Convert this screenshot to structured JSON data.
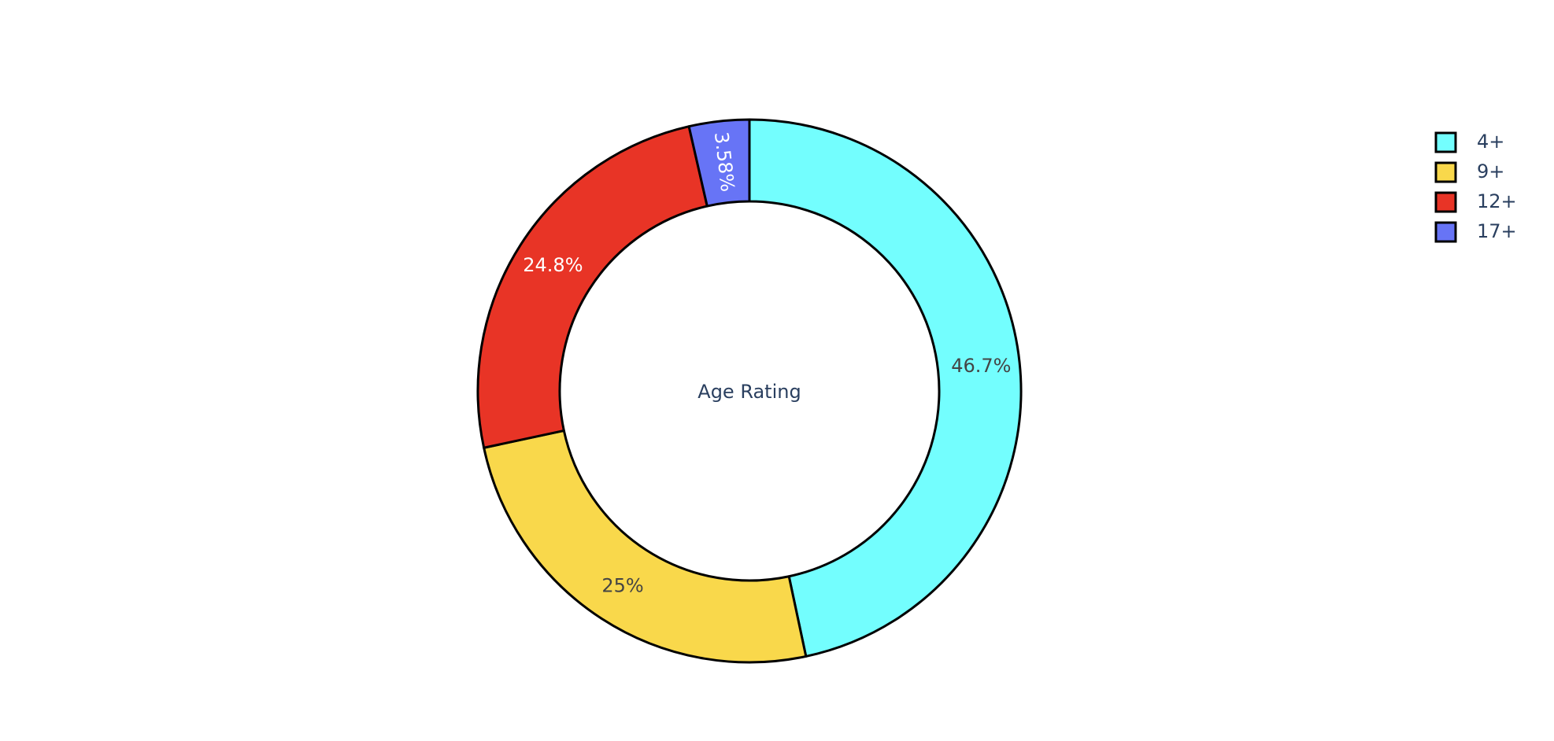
{
  "chart_data": {
    "type": "pie",
    "hole": true,
    "center_label": "Age Rating",
    "labels": [
      "4+",
      "9+",
      "12+",
      "17+"
    ],
    "values": [
      46.7,
      25,
      24.8,
      3.58
    ],
    "value_labels": [
      "46.7%",
      "25%",
      "24.8%",
      "3.58%"
    ],
    "colors": [
      "#73fefe",
      "#f9d84b",
      "#e83426",
      "#6774f6"
    ],
    "label_colors": [
      "#444444",
      "#444444",
      "#ffffff",
      "#ffffff"
    ],
    "legend": {
      "position": "top-right",
      "entries": [
        "4+",
        "9+",
        "12+",
        "17+"
      ]
    },
    "direction": "clockwise",
    "rotation_start": "top"
  }
}
